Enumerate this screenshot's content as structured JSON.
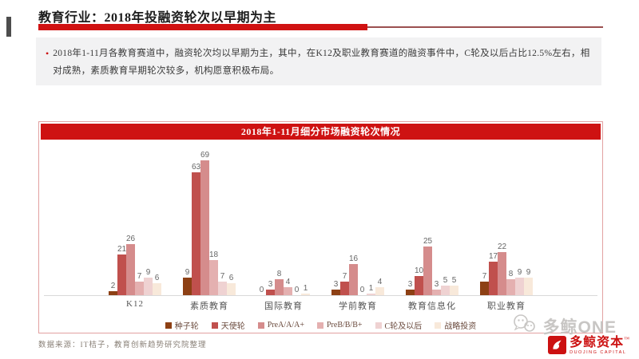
{
  "slide": {
    "title": "教育行业：2018年投融资轮次以早期为主",
    "bullet_text": "2018年1-11月各教育赛道中，融资轮次均以早期为主，其中，在K12及职业教育赛道的融资事件中，C轮及以后占比12.5%左右，相对成熟，素质教育早期轮次较多，机构愿意积极布局。",
    "source_note": "数据来源：IT桔子，教育创新趋势研究院整理",
    "watermark": "多鲸ONE",
    "logo": {
      "name": "多鲸资本",
      "tm": "™",
      "subtitle": "DUOJING CAPITAL"
    },
    "accent_red": "#ce1212"
  },
  "chart_data": {
    "type": "bar",
    "title": "2018年1-11月细分市场融资轮次情况",
    "categories": [
      "K12",
      "素质教育",
      "国际教育",
      "学前教育",
      "教育信息化",
      "职业教育"
    ],
    "series": [
      {
        "name": "种子轮",
        "color": "#8d4014",
        "values": [
          2,
          9,
          0,
          3,
          3,
          7
        ]
      },
      {
        "name": "天使轮",
        "color": "#c0504d",
        "values": [
          21,
          63,
          3,
          7,
          10,
          17
        ]
      },
      {
        "name": "PreA/A/A+",
        "color": "#d58c8c",
        "values": [
          26,
          69,
          8,
          16,
          25,
          22
        ]
      },
      {
        "name": "PreB/B/B+",
        "color": "#e4b0b0",
        "values": [
          7,
          18,
          4,
          0,
          3,
          8
        ]
      },
      {
        "name": "C轮及以后",
        "color": "#efd2d2",
        "values": [
          9,
          7,
          0,
          1,
          5,
          9
        ]
      },
      {
        "name": "战略投资",
        "color": "#f8e9da",
        "values": [
          6,
          6,
          1,
          4,
          5,
          9
        ]
      }
    ],
    "ylim": [
      0,
      75
    ],
    "grid": false,
    "value_labels": true,
    "legend_position": "bottom"
  }
}
